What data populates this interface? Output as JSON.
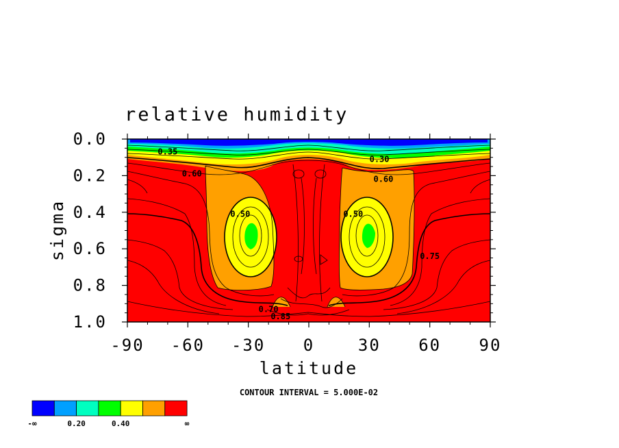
{
  "chart_data": {
    "type": "contour",
    "title": "relative humidity",
    "xlabel": "latitude",
    "ylabel": "sigma",
    "x_ticks": [
      "-90",
      "-60",
      "-30",
      "0",
      "30",
      "60",
      "90"
    ],
    "x_tick_values": [
      -90,
      -60,
      -30,
      0,
      30,
      60,
      90
    ],
    "y_ticks": [
      "0.0",
      "0.2",
      "0.4",
      "0.6",
      "0.8",
      "1.0"
    ],
    "y_tick_values": [
      0.0,
      0.2,
      0.4,
      0.6,
      0.8,
      1.0
    ],
    "xlim": [
      -90,
      90
    ],
    "ylim": [
      1.0,
      0.0
    ],
    "y_inverted": true,
    "contour_interval_label": "CONTOUR INTERVAL = 5.000E-02",
    "contour_labels": [
      {
        "text": "0.35",
        "x": -70,
        "y": 0.07
      },
      {
        "text": "0.60",
        "x": -58,
        "y": 0.19
      },
      {
        "text": "0.30",
        "x": 35,
        "y": 0.11
      },
      {
        "text": "0.60",
        "x": 37,
        "y": 0.22
      },
      {
        "text": "0.50",
        "x": -34,
        "y": 0.41
      },
      {
        "text": "0.50",
        "x": 22,
        "y": 0.41
      },
      {
        "text": "0.75",
        "x": 60,
        "y": 0.64
      },
      {
        "text": "0.70",
        "x": -20,
        "y": 0.93
      },
      {
        "text": "0.85",
        "x": -14,
        "y": 0.97
      }
    ],
    "colorbar": {
      "colors": [
        "#0000ff",
        "#00a0ff",
        "#00ffc0",
        "#00ff00",
        "#ffff00",
        "#ffa000",
        "#ff0000"
      ],
      "labels": [
        "-∞",
        "0.20",
        "0.40",
        "∞"
      ]
    }
  }
}
